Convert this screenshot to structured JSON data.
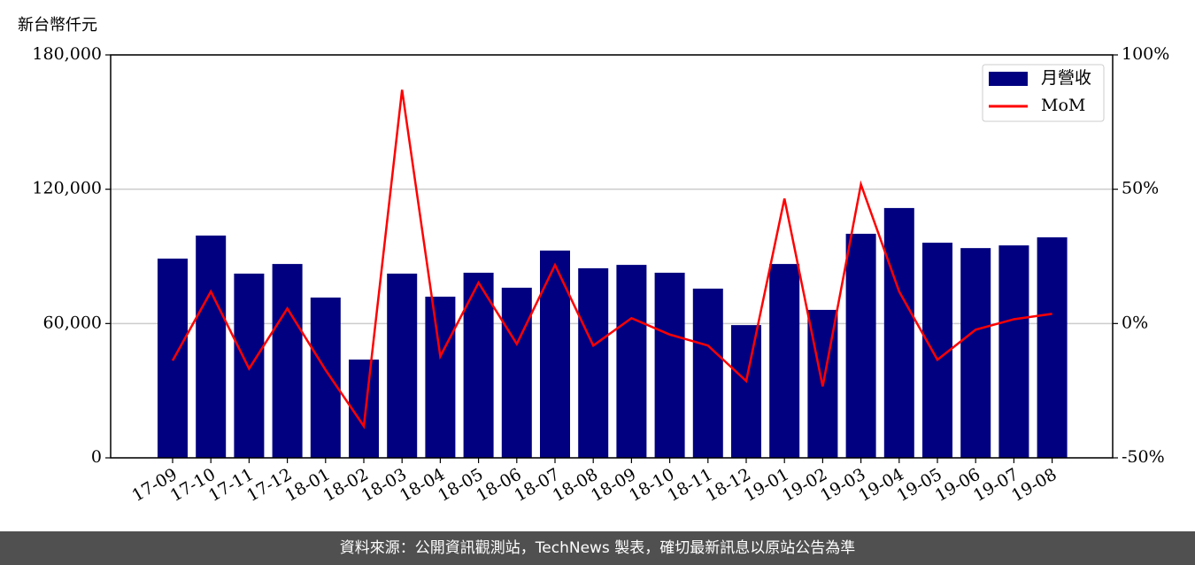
{
  "chart_data": {
    "type": "bar_line",
    "y_label": "新台幣仟元",
    "source": "資料來源：公開資訊觀測站，TechNews 製表，確切最新訊息以原站公告為準",
    "categories": [
      "17-09",
      "17-10",
      "17-11",
      "17-12",
      "18-01",
      "18-02",
      "18-03",
      "18-04",
      "18-05",
      "18-06",
      "18-07",
      "18-08",
      "18-09",
      "18-10",
      "18-11",
      "18-12",
      "19-01",
      "19-02",
      "19-03",
      "19-04",
      "19-05",
      "19-06",
      "19-07",
      "19-08"
    ],
    "series": [
      {
        "name": "月營收",
        "color": "#000080",
        "type": "bar",
        "values": [
          89000,
          99300,
          82300,
          86600,
          71600,
          43900,
          82300,
          72000,
          82700,
          76000,
          92600,
          84700,
          86200,
          82700,
          75600,
          59300,
          86600,
          66100,
          100100,
          111600,
          96100,
          93700,
          94900,
          98500
        ]
      },
      {
        "name": "MoM",
        "color": "#ff0000",
        "type": "line",
        "axis": "y2",
        "values": [
          -13.8,
          11.9,
          -16.8,
          5.6,
          -17.3,
          -38.2,
          87,
          -12.2,
          15.2,
          -7.6,
          21.8,
          -8.2,
          2,
          -4.1,
          -8.2,
          -21.4,
          46.5,
          -23.4,
          51.8,
          11.9,
          -13.5,
          -2.3,
          1.6,
          3.6
        ]
      }
    ],
    "ylim": [
      0,
      180000
    ],
    "yticks": [
      0,
      {
        "value": 60000,
        "label": "60,000"
      },
      {
        "value": 120000,
        "label": "120,000"
      },
      {
        "value": 180000,
        "label": "180,000"
      }
    ],
    "y2lim": [
      -50,
      100
    ],
    "y2ticks": [
      {
        "value": -50,
        "label": "-50%"
      },
      {
        "value": 0,
        "label": "0%"
      },
      {
        "value": 50,
        "label": "50%"
      },
      {
        "value": 100,
        "label": "100%"
      }
    ],
    "grid": true,
    "legend": "upper right"
  }
}
